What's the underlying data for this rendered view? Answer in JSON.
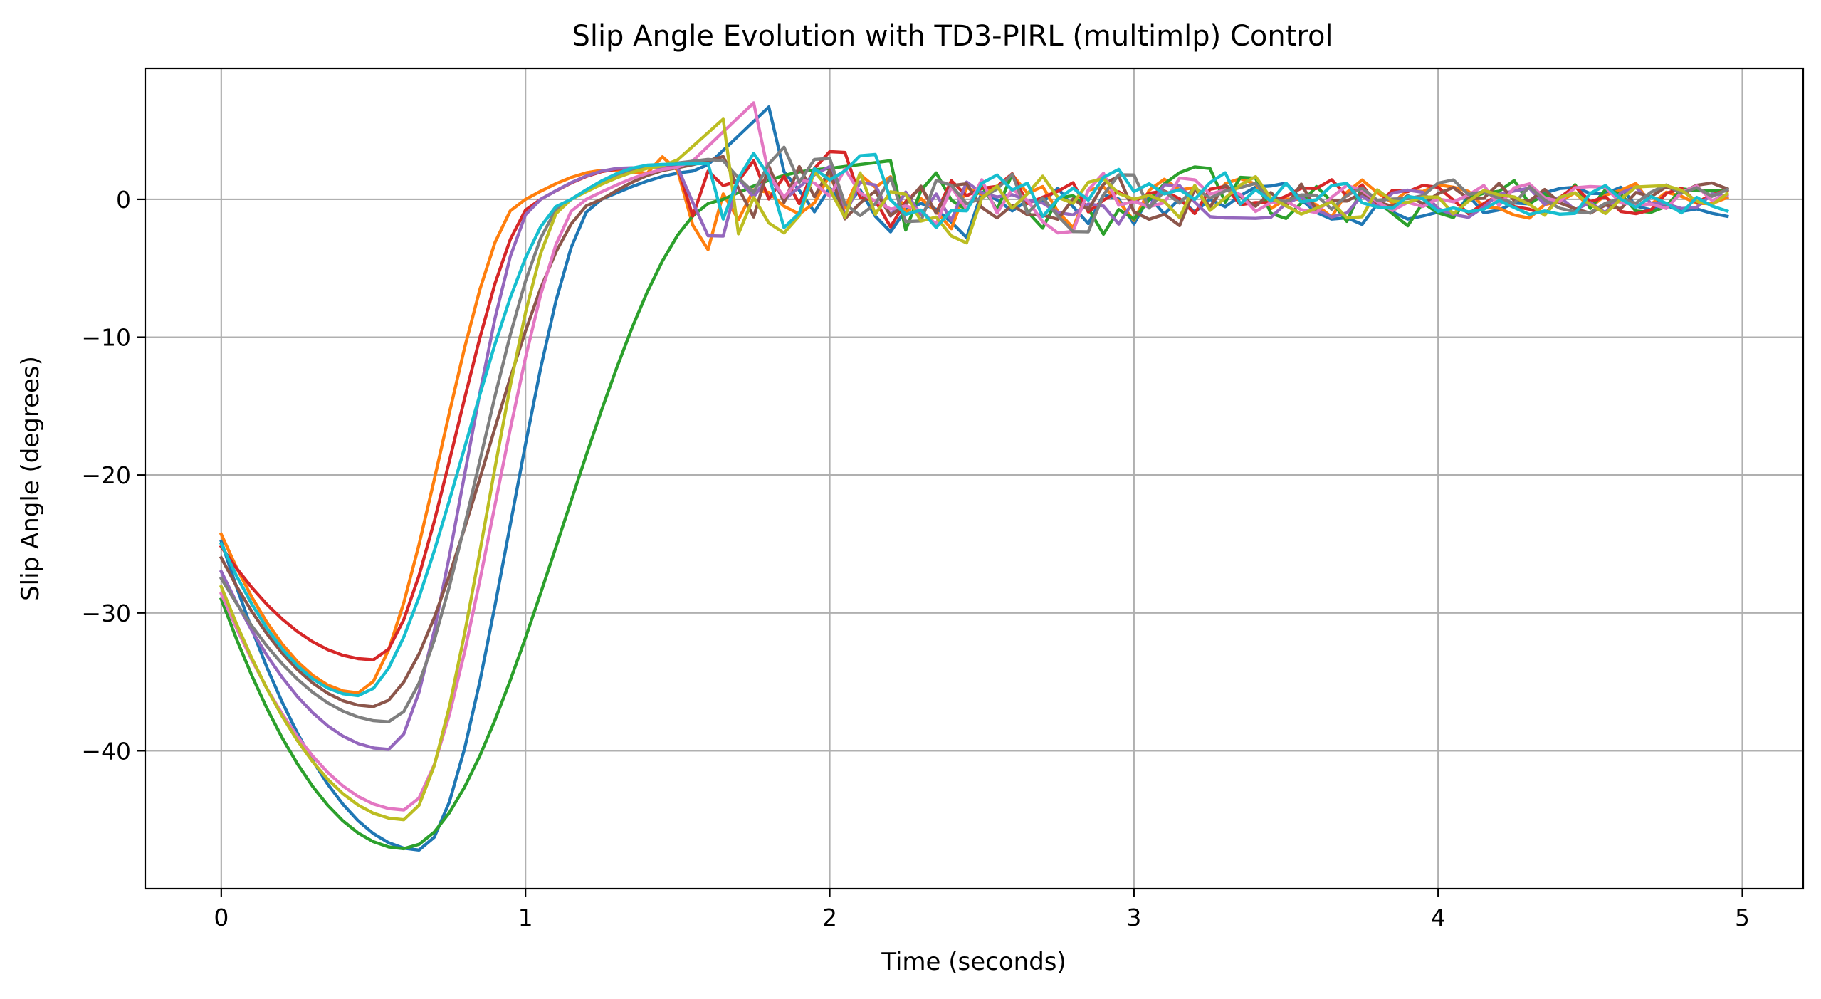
{
  "chart_data": {
    "type": "line",
    "title": "Slip Angle Evolution with TD3-PIRL (multimlp) Control",
    "xlabel": "Time (seconds)",
    "ylabel": "Slip Angle (degrees)",
    "xlim": [
      -0.25,
      5.2
    ],
    "ylim": [
      -50,
      9.5
    ],
    "xticks": [
      0,
      1,
      2,
      3,
      4,
      5
    ],
    "xtick_labels": [
      "0",
      "1",
      "2",
      "3",
      "4",
      "5"
    ],
    "yticks": [
      0,
      -10,
      -20,
      -30,
      -40
    ],
    "ytick_labels": [
      "0",
      "−10",
      "−20",
      "−30",
      "−40"
    ],
    "grid": true,
    "legend": "none",
    "x_start": 0,
    "x_end": 4.95,
    "x_step": 0.05,
    "series": [
      {
        "color": "#1f77b4",
        "initial": -24.8,
        "minimum": -47.2,
        "min_time": 0.65,
        "peak": 6.7,
        "peak_time": 1.8
      },
      {
        "color": "#ff7f0e",
        "initial": -24.3,
        "minimum": -35.8,
        "min_time": 0.45,
        "peak": 1.8,
        "peak_time": 1.45
      },
      {
        "color": "#2ca02c",
        "initial": -29.0,
        "minimum": -47.1,
        "min_time": 0.6,
        "peak": 2.8,
        "peak_time": 2.2
      },
      {
        "color": "#d62728",
        "initial": -25.2,
        "minimum": -33.4,
        "min_time": 0.5,
        "peak": 2.4,
        "peak_time": 1.5
      },
      {
        "color": "#9467bd",
        "initial": -27.0,
        "minimum": -39.9,
        "min_time": 0.55,
        "peak": 2.3,
        "peak_time": 1.5
      },
      {
        "color": "#8c564b",
        "initial": -26.0,
        "minimum": -36.8,
        "min_time": 0.5,
        "peak": 3.4,
        "peak_time": 1.7
      },
      {
        "color": "#e377c2",
        "initial": -28.6,
        "minimum": -44.3,
        "min_time": 0.6,
        "peak": 7.0,
        "peak_time": 1.75
      },
      {
        "color": "#7f7f7f",
        "initial": -27.5,
        "minimum": -37.9,
        "min_time": 0.55,
        "peak": 2.9,
        "peak_time": 1.6
      },
      {
        "color": "#bcbd22",
        "initial": -28.1,
        "minimum": -45.0,
        "min_time": 0.6,
        "peak": 6.8,
        "peak_time": 1.7
      },
      {
        "color": "#17becf",
        "initial": -25.0,
        "minimum": -36.0,
        "min_time": 0.45,
        "peak": 2.6,
        "peak_time": 1.6
      }
    ]
  }
}
